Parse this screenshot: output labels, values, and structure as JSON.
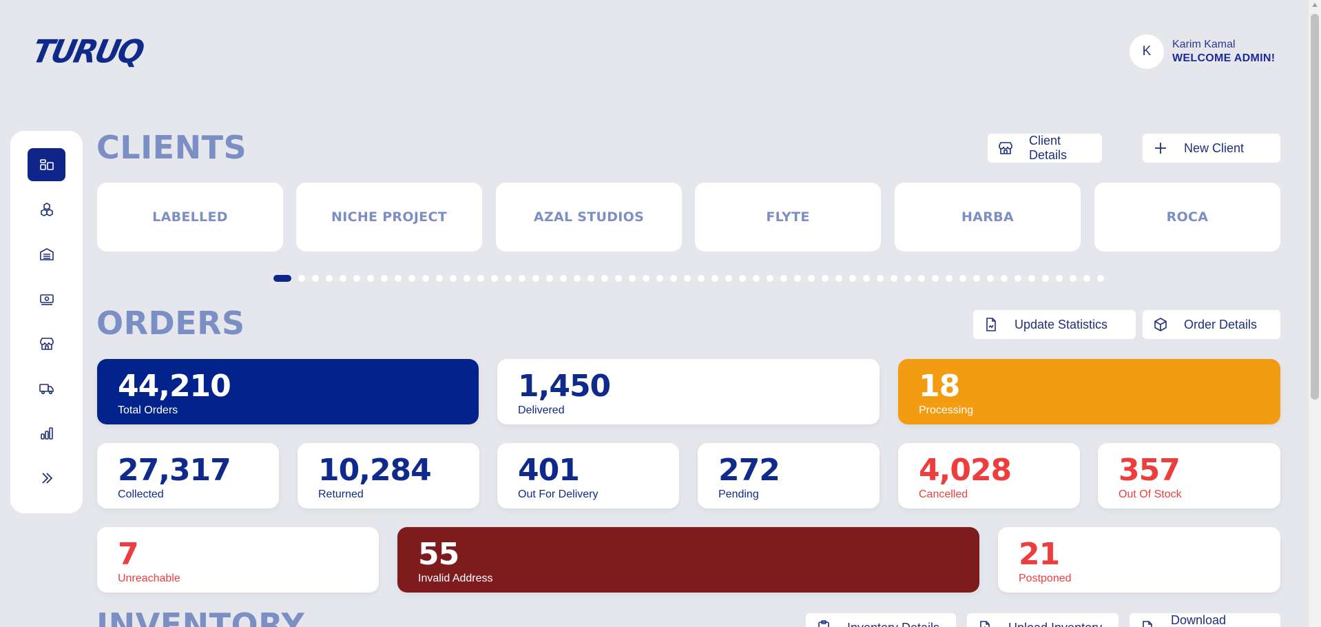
{
  "brand": {
    "logo_text": "TURUQ"
  },
  "user": {
    "initial": "K",
    "name": "Karim Kamal",
    "role": "WELCOME ADMIN!"
  },
  "sidebar": {
    "items": [
      {
        "icon": "dashboard-icon",
        "active": true
      },
      {
        "icon": "boxes-icon"
      },
      {
        "icon": "warehouse-icon"
      },
      {
        "icon": "cash-icon"
      },
      {
        "icon": "store-icon"
      },
      {
        "icon": "truck-icon"
      },
      {
        "icon": "bar-chart-icon"
      },
      {
        "icon": "chevrons-right-icon"
      }
    ]
  },
  "clients": {
    "title": "CLIENTS",
    "details_button": "Client Details",
    "new_button": "New Client",
    "cards": [
      "LABELLED",
      "NICHE PROJECT",
      "AZAL STUDIOS",
      "FLYTE",
      "HARBA",
      "ROCA"
    ],
    "carousel": {
      "total_pages": 60,
      "active_page": 1
    }
  },
  "orders": {
    "title": "ORDERS",
    "update_button": "Update Statistics",
    "details_button": "Order Details",
    "total": {
      "value": "44,210",
      "label": "Total Orders"
    },
    "delivered": {
      "value": "1,450",
      "label": "Delivered"
    },
    "processing": {
      "value": "18",
      "label": "Processing"
    },
    "collected": {
      "value": "27,317",
      "label": "Collected"
    },
    "returned": {
      "value": "10,284",
      "label": "Returned"
    },
    "out_for_delivery": {
      "value": "401",
      "label": "Out For Delivery"
    },
    "pending": {
      "value": "272",
      "label": "Pending"
    },
    "cancelled": {
      "value": "4,028",
      "label": "Cancelled"
    },
    "out_of_stock": {
      "value": "357",
      "label": "Out Of Stock"
    },
    "unreachable": {
      "value": "7",
      "label": "Unreachable"
    },
    "invalid_address": {
      "value": "55",
      "label": "Invalid Address"
    },
    "postponed": {
      "value": "21",
      "label": "Postponed"
    }
  },
  "inventory": {
    "title": "INVENTORY",
    "details_button": "Inventory Details",
    "upload_button": "Upload Inventory",
    "download_button": "Download Inventory"
  },
  "colors": {
    "primary": "#0f2589",
    "orange": "#f39c12",
    "maroon": "#7e1b1d",
    "danger": "#ee3d3d",
    "muted_title": "#7b8fc4",
    "background": "#e5e7ec"
  }
}
